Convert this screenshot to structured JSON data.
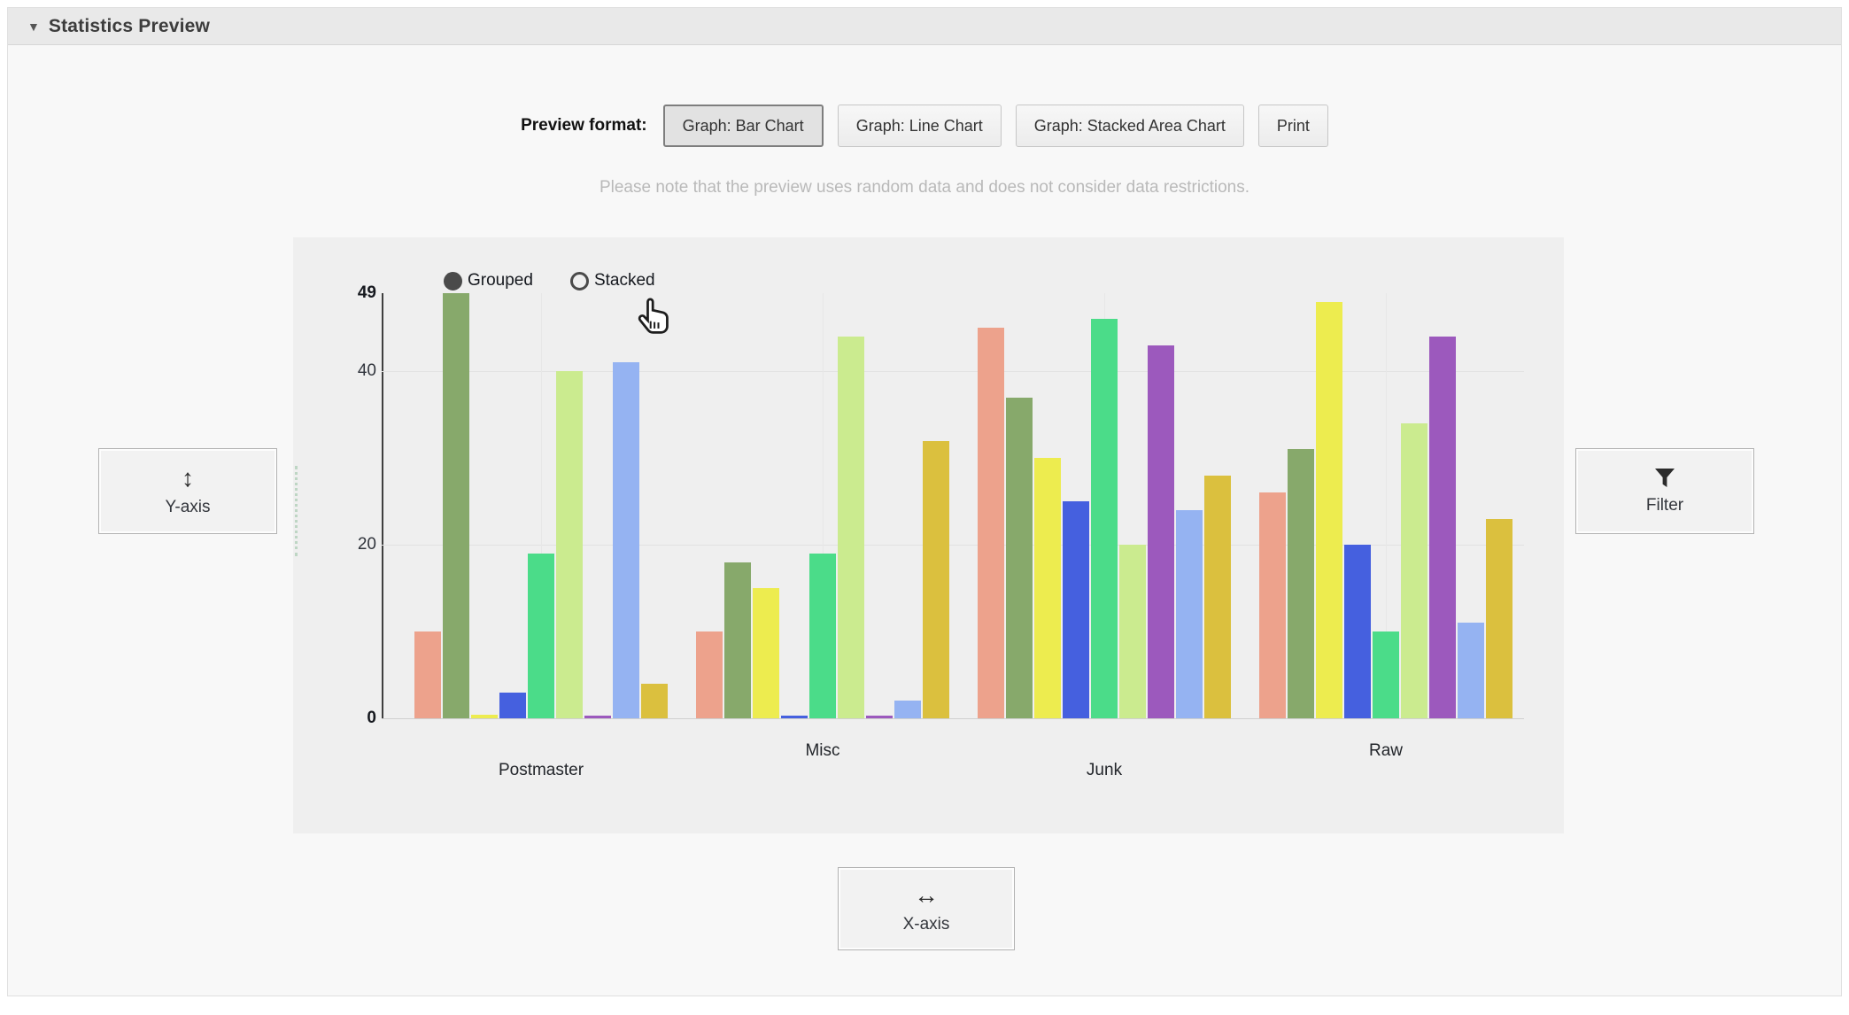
{
  "header": {
    "title": "Statistics Preview",
    "collapse_icon": "▼"
  },
  "toolbar": {
    "label": "Preview format:",
    "buttons": [
      {
        "label": "Graph: Bar Chart",
        "selected": true
      },
      {
        "label": "Graph: Line Chart",
        "selected": false
      },
      {
        "label": "Graph: Stacked Area Chart",
        "selected": false
      },
      {
        "label": "Print",
        "selected": false
      }
    ]
  },
  "note": "Please note that the preview uses random data and does not consider data restrictions.",
  "axis_controls": {
    "y_axis": {
      "label": "Y-axis",
      "icon": "↕"
    },
    "x_axis": {
      "label": "X-axis",
      "icon": "↔"
    },
    "filter": {
      "label": "Filter",
      "icon": "funnel"
    }
  },
  "chart_data": {
    "type": "bar",
    "mode_options": [
      {
        "label": "Grouped",
        "selected": true
      },
      {
        "label": "Stacked",
        "selected": false
      }
    ],
    "categories": [
      "Postmaster",
      "Misc",
      "Junk",
      "Raw"
    ],
    "ylim": [
      0,
      49
    ],
    "y_ticks": [
      0,
      20,
      40,
      49
    ],
    "grid": "horizontal lines at 20 and 40; faint vertical line at each category center",
    "legend_position": "none",
    "series": [
      {
        "name": "salmon",
        "color": "#EDA28C",
        "values": [
          10,
          10,
          45,
          26
        ]
      },
      {
        "name": "sage-green",
        "color": "#87A96B",
        "values": [
          49,
          18,
          37,
          31
        ]
      },
      {
        "name": "yellow",
        "color": "#EDEC4F",
        "values": [
          0.4,
          15,
          30,
          48
        ]
      },
      {
        "name": "royal-blue",
        "color": "#4560DF",
        "values": [
          3,
          0.3,
          25,
          20
        ]
      },
      {
        "name": "emerald",
        "color": "#4BDC89",
        "values": [
          19,
          19,
          46,
          10
        ]
      },
      {
        "name": "lime",
        "color": "#CBEB8F",
        "values": [
          40,
          44,
          20,
          34
        ]
      },
      {
        "name": "purple",
        "color": "#9C59BD",
        "values": [
          0.3,
          0.3,
          43,
          44
        ]
      },
      {
        "name": "light-blue",
        "color": "#95B3F2",
        "values": [
          41,
          2,
          24,
          11
        ]
      },
      {
        "name": "gold",
        "color": "#DBC03E",
        "values": [
          4,
          32,
          28,
          23
        ]
      }
    ]
  }
}
